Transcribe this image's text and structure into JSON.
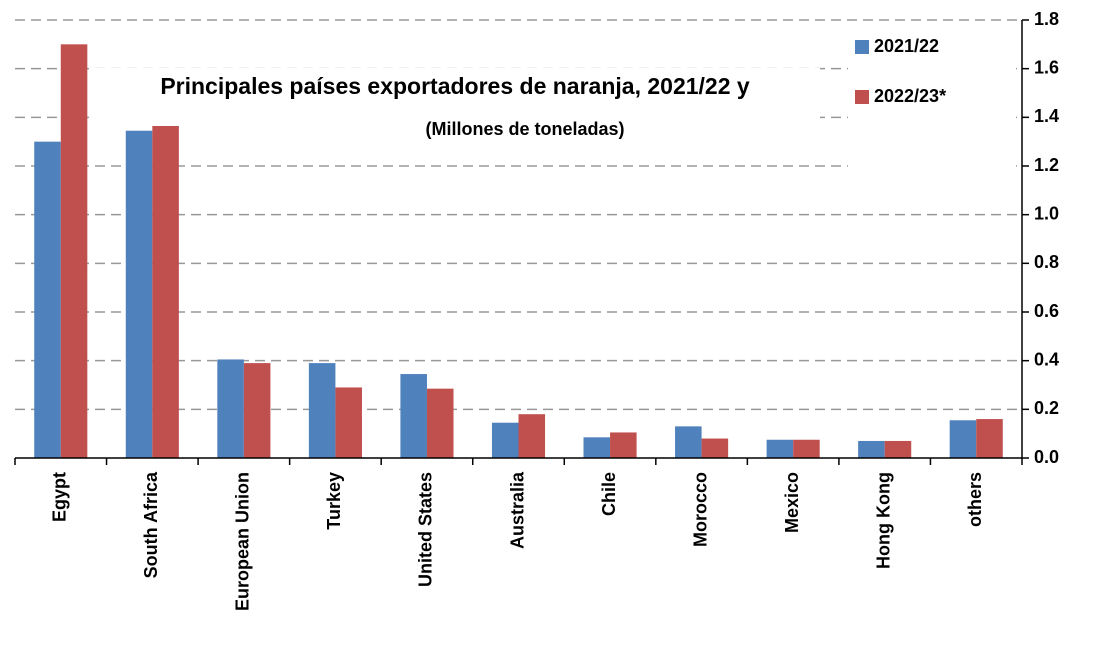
{
  "chart_data": {
    "type": "bar",
    "title": "Principales países exportadores de naranja, 2021/22 y",
    "subtitle": "(Millones de toneladas)",
    "categories": [
      "Egypt",
      "South Africa",
      "European Union",
      "Turkey",
      "United States",
      "Australia",
      "Chile",
      "Morocco",
      "Mexico",
      "Hong Kong",
      "others"
    ],
    "series": [
      {
        "name": "2021/22",
        "color": "#4f81bd",
        "values": [
          1.3,
          1.345,
          0.405,
          0.39,
          0.345,
          0.145,
          0.085,
          0.13,
          0.075,
          0.07,
          0.155
        ]
      },
      {
        "name": "2022/23*",
        "color": "#c0504d",
        "values": [
          1.7,
          1.38,
          0.39,
          0.29,
          0.285,
          0.18,
          0.105,
          0.08,
          0.075,
          0.07,
          0.16
        ]
      }
    ],
    "ylim": [
      0,
      1.8
    ],
    "yticks": [
      {
        "value": 0,
        "label": "0.0"
      },
      {
        "value": 0.2,
        "label": "0.2"
      },
      {
        "value": 0.4,
        "label": "0.4"
      },
      {
        "value": 0.6,
        "label": "0.6"
      },
      {
        "value": 0.8,
        "label": "0.8"
      },
      {
        "value": 1.0,
        "label": "1.0"
      },
      {
        "value": 1.2,
        "label": "1.2"
      },
      {
        "value": 1.4,
        "label": "1.4"
      },
      {
        "value": 1.6,
        "label": "1.6"
      },
      {
        "value": 1.8,
        "label": "1.8"
      }
    ],
    "grid": true
  }
}
